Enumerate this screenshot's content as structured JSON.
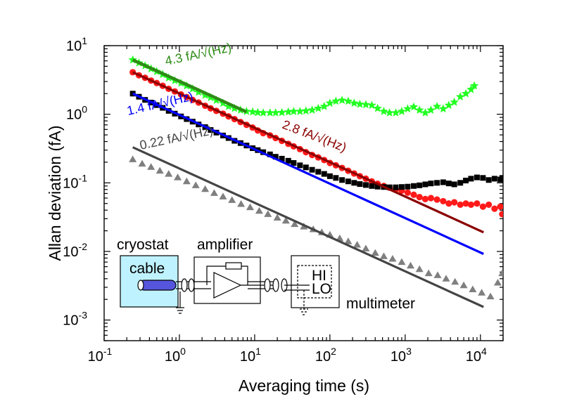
{
  "chart_data": {
    "type": "scatter",
    "xscale": "log",
    "yscale": "log",
    "xlim": [
      0.1,
      20000
    ],
    "ylim": [
      0.0005,
      10
    ],
    "xlabel": "Averaging time (s)",
    "ylabel": "Allan deviation (fA)",
    "x_ticks": [
      {
        "value": 0.1,
        "base": "10",
        "exp": "-1"
      },
      {
        "value": 1,
        "base": "10",
        "exp": "0"
      },
      {
        "value": 10,
        "base": "10",
        "exp": "1"
      },
      {
        "value": 100,
        "base": "10",
        "exp": "2"
      },
      {
        "value": 1000,
        "base": "10",
        "exp": "3"
      },
      {
        "value": 10000,
        "base": "10",
        "exp": "4"
      }
    ],
    "y_ticks": [
      {
        "value": 0.001,
        "base": "10",
        "exp": "-3"
      },
      {
        "value": 0.01,
        "base": "10",
        "exp": "-2"
      },
      {
        "value": 0.1,
        "base": "10",
        "exp": "-1"
      },
      {
        "value": 1,
        "base": "10",
        "exp": "0"
      },
      {
        "value": 10,
        "base": "10",
        "exp": "1"
      }
    ],
    "series": [
      {
        "name": "green",
        "marker": "star",
        "color": "#22ff22",
        "points": [
          [
            0.24,
            6.2
          ],
          [
            0.29,
            5.6
          ],
          [
            0.35,
            5.1
          ],
          [
            0.42,
            4.6
          ],
          [
            0.5,
            4.2
          ],
          [
            0.6,
            3.8
          ],
          [
            0.72,
            3.4
          ],
          [
            0.87,
            3.1
          ],
          [
            1.05,
            2.85
          ],
          [
            1.25,
            2.6
          ],
          [
            1.5,
            2.35
          ],
          [
            1.8,
            2.1
          ],
          [
            2.2,
            1.9
          ],
          [
            2.6,
            1.75
          ],
          [
            3.1,
            1.6
          ],
          [
            3.8,
            1.45
          ],
          [
            4.5,
            1.3
          ],
          [
            5.4,
            1.22
          ],
          [
            6.5,
            1.15
          ],
          [
            7.8,
            1.1
          ],
          [
            9.4,
            1.08
          ],
          [
            11,
            1.06
          ],
          [
            13,
            1.05
          ],
          [
            16,
            1.05
          ],
          [
            19,
            1.05
          ],
          [
            23,
            1.06
          ],
          [
            28,
            1.08
          ],
          [
            33,
            1.1
          ],
          [
            40,
            1.1
          ],
          [
            48,
            1.12
          ],
          [
            58,
            1.15
          ],
          [
            70,
            1.22
          ],
          [
            84,
            1.3
          ],
          [
            100,
            1.45
          ],
          [
            120,
            1.55
          ],
          [
            145,
            1.6
          ],
          [
            175,
            1.55
          ],
          [
            210,
            1.45
          ],
          [
            250,
            1.4
          ],
          [
            300,
            1.38
          ],
          [
            360,
            1.35
          ],
          [
            430,
            1.22
          ],
          [
            520,
            1.1
          ],
          [
            620,
            1.05
          ],
          [
            750,
            1.05
          ],
          [
            900,
            1.1
          ],
          [
            1080,
            1.2
          ],
          [
            1300,
            1.28
          ],
          [
            1550,
            1.15
          ],
          [
            1850,
            1.05
          ],
          [
            2200,
            1.15
          ],
          [
            2650,
            1.3
          ],
          [
            3200,
            1.2
          ],
          [
            3800,
            1.35
          ],
          [
            4500,
            1.5
          ],
          [
            5400,
            1.8
          ],
          [
            6400,
            2.0
          ],
          [
            7500,
            2.3
          ],
          [
            8300,
            2.6
          ]
        ]
      },
      {
        "name": "red",
        "marker": "circle",
        "color": "#ff1a1a",
        "points": [
          [
            0.24,
            4.1
          ],
          [
            0.29,
            3.7
          ],
          [
            0.35,
            3.4
          ],
          [
            0.42,
            3.1
          ],
          [
            0.5,
            2.85
          ],
          [
            0.6,
            2.6
          ],
          [
            0.72,
            2.35
          ],
          [
            0.87,
            2.15
          ],
          [
            1.05,
            1.95
          ],
          [
            1.25,
            1.78
          ],
          [
            1.5,
            1.62
          ],
          [
            1.8,
            1.48
          ],
          [
            2.2,
            1.33
          ],
          [
            2.6,
            1.22
          ],
          [
            3.1,
            1.12
          ],
          [
            3.8,
            1.02
          ],
          [
            4.5,
            0.93
          ],
          [
            5.4,
            0.85
          ],
          [
            6.5,
            0.77
          ],
          [
            7.8,
            0.7
          ],
          [
            9.4,
            0.64
          ],
          [
            11,
            0.58
          ],
          [
            13,
            0.53
          ],
          [
            16,
            0.49
          ],
          [
            19,
            0.45
          ],
          [
            23,
            0.41
          ],
          [
            28,
            0.37
          ],
          [
            33,
            0.34
          ],
          [
            40,
            0.31
          ],
          [
            48,
            0.28
          ],
          [
            58,
            0.255
          ],
          [
            70,
            0.235
          ],
          [
            84,
            0.215
          ],
          [
            100,
            0.195
          ],
          [
            120,
            0.18
          ],
          [
            145,
            0.165
          ],
          [
            175,
            0.15
          ],
          [
            210,
            0.137
          ],
          [
            250,
            0.125
          ],
          [
            300,
            0.115
          ],
          [
            360,
            0.105
          ],
          [
            430,
            0.097
          ],
          [
            520,
            0.09
          ],
          [
            620,
            0.085
          ],
          [
            750,
            0.08
          ],
          [
            900,
            0.077
          ],
          [
            1080,
            0.072
          ],
          [
            1300,
            0.067
          ],
          [
            1550,
            0.062
          ],
          [
            1850,
            0.058
          ],
          [
            2200,
            0.06
          ],
          [
            2650,
            0.057
          ],
          [
            3200,
            0.054
          ],
          [
            3800,
            0.05
          ],
          [
            4500,
            0.052
          ],
          [
            5400,
            0.048
          ],
          [
            6400,
            0.05
          ],
          [
            7500,
            0.048
          ],
          [
            9000,
            0.05
          ],
          [
            10800,
            0.045
          ],
          [
            12900,
            0.048
          ],
          [
            15400,
            0.042
          ],
          [
            18400,
            0.045
          ],
          [
            19500,
            0.035
          ]
        ]
      },
      {
        "name": "black",
        "marker": "square",
        "color": "#000000",
        "points": [
          [
            0.24,
            2.0
          ],
          [
            0.29,
            1.8
          ],
          [
            0.35,
            1.62
          ],
          [
            0.42,
            1.48
          ],
          [
            0.5,
            1.36
          ],
          [
            0.6,
            1.24
          ],
          [
            0.72,
            1.12
          ],
          [
            0.87,
            1.02
          ],
          [
            1.05,
            0.93
          ],
          [
            1.25,
            0.85
          ],
          [
            1.5,
            0.78
          ],
          [
            1.8,
            0.71
          ],
          [
            2.2,
            0.65
          ],
          [
            2.6,
            0.59
          ],
          [
            3.1,
            0.54
          ],
          [
            3.8,
            0.49
          ],
          [
            4.5,
            0.45
          ],
          [
            5.4,
            0.41
          ],
          [
            6.5,
            0.38
          ],
          [
            7.8,
            0.35
          ],
          [
            9.4,
            0.32
          ],
          [
            11,
            0.3
          ],
          [
            13,
            0.28
          ],
          [
            16,
            0.26
          ],
          [
            19,
            0.24
          ],
          [
            23,
            0.225
          ],
          [
            28,
            0.21
          ],
          [
            33,
            0.195
          ],
          [
            40,
            0.18
          ],
          [
            48,
            0.168
          ],
          [
            58,
            0.155
          ],
          [
            70,
            0.145
          ],
          [
            84,
            0.135
          ],
          [
            100,
            0.125
          ],
          [
            120,
            0.118
          ],
          [
            145,
            0.11
          ],
          [
            175,
            0.105
          ],
          [
            210,
            0.1
          ],
          [
            250,
            0.096
          ],
          [
            300,
            0.093
          ],
          [
            360,
            0.09
          ],
          [
            430,
            0.088
          ],
          [
            520,
            0.087
          ],
          [
            620,
            0.086
          ],
          [
            750,
            0.086
          ],
          [
            900,
            0.087
          ],
          [
            1080,
            0.088
          ],
          [
            1300,
            0.09
          ],
          [
            1550,
            0.092
          ],
          [
            1850,
            0.095
          ],
          [
            2200,
            0.098
          ],
          [
            2650,
            0.1
          ],
          [
            3200,
            0.102
          ],
          [
            3800,
            0.098
          ],
          [
            4500,
            0.095
          ],
          [
            5400,
            0.1
          ],
          [
            6400,
            0.108
          ],
          [
            7500,
            0.115
          ],
          [
            9000,
            0.12
          ],
          [
            10800,
            0.118
          ],
          [
            12900,
            0.11
          ],
          [
            15400,
            0.115
          ],
          [
            18400,
            0.112
          ],
          [
            19500,
            0.118
          ]
        ]
      },
      {
        "name": "gray",
        "marker": "triangle",
        "color": "#7f7f7f",
        "points": [
          [
            0.24,
            0.22
          ],
          [
            0.32,
            0.19
          ],
          [
            0.42,
            0.17
          ],
          [
            0.55,
            0.15
          ],
          [
            0.72,
            0.135
          ],
          [
            0.95,
            0.12
          ],
          [
            1.25,
            0.105
          ],
          [
            1.65,
            0.092
          ],
          [
            2.2,
            0.081
          ],
          [
            2.9,
            0.071
          ],
          [
            3.8,
            0.063
          ],
          [
            5.0,
            0.056
          ],
          [
            6.6,
            0.049
          ],
          [
            8.7,
            0.044
          ],
          [
            11.5,
            0.039
          ],
          [
            15,
            0.035
          ],
          [
            20,
            0.031
          ],
          [
            26,
            0.028
          ],
          [
            34,
            0.025
          ],
          [
            45,
            0.023
          ],
          [
            60,
            0.021
          ],
          [
            78,
            0.019
          ],
          [
            100,
            0.0175
          ],
          [
            135,
            0.0155
          ],
          [
            175,
            0.014
          ],
          [
            230,
            0.0125
          ],
          [
            300,
            0.011
          ],
          [
            400,
            0.0095
          ],
          [
            520,
            0.0085
          ],
          [
            680,
            0.0078
          ],
          [
            900,
            0.007
          ],
          [
            1180,
            0.0062
          ],
          [
            1550,
            0.0055
          ],
          [
            2050,
            0.0048
          ],
          [
            2700,
            0.0045
          ],
          [
            3500,
            0.004
          ],
          [
            4600,
            0.0036
          ],
          [
            6000,
            0.0032
          ],
          [
            7900,
            0.0028
          ],
          [
            10400,
            0.0025
          ],
          [
            13600,
            0.0022
          ],
          [
            17000,
            0.0035
          ],
          [
            19500,
            0.0048
          ]
        ]
      }
    ],
    "fits": [
      {
        "name": "green-fit",
        "color": "#2e8b16",
        "x_start": 0.24,
        "x_end": 7.8,
        "y_start": 6.2,
        "y_end": 1.08,
        "label": "4.3 fA/√(Hz)"
      },
      {
        "name": "darkred-fit",
        "color": "#8b0000",
        "x_start": 0.24,
        "x_end": 11000,
        "y_start": 4.1,
        "y_end": 0.019,
        "label": "2.8 fA/√(Hz)"
      },
      {
        "name": "blue-fit",
        "color": "#0000ff",
        "x_start": 0.24,
        "x_end": 11000,
        "y_start": 2.0,
        "y_end": 0.0092,
        "label": "1.4 fA/√(Hz)"
      },
      {
        "name": "gray-fit",
        "color": "#454545",
        "x_start": 0.24,
        "x_end": 11000,
        "y_start": 0.33,
        "y_end": 0.00155,
        "label": "0.22 fA/√(Hz)"
      }
    ]
  },
  "inset": {
    "cryostat_label": "cryostat",
    "cable_label": "cable",
    "amplifier_label": "amplifier",
    "multimeter_label": "multimeter",
    "hi_label": "HI",
    "lo_label": "LO",
    "cryostat_fill": "#bff2ff"
  }
}
